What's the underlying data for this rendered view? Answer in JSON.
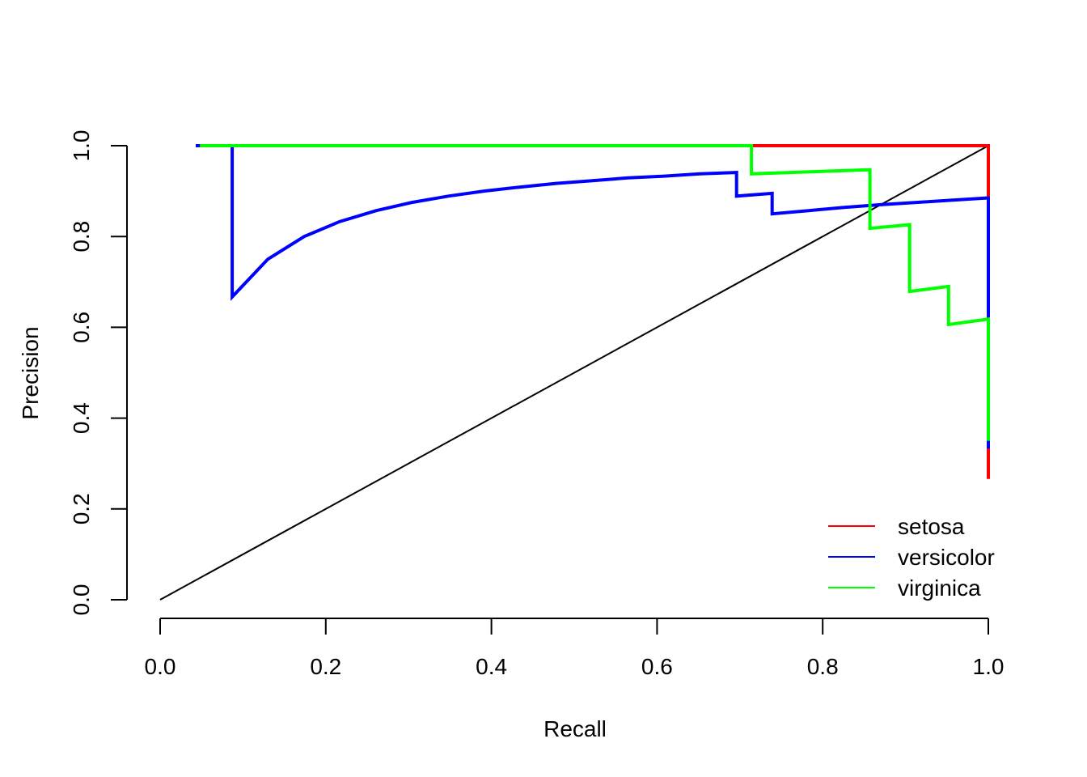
{
  "chart_data": {
    "type": "line",
    "title": "",
    "xlabel": "Recall",
    "ylabel": "Precision",
    "xlim": [
      0,
      1
    ],
    "ylim": [
      0,
      1
    ],
    "grid": false,
    "legend_position": "bottom-right",
    "x_ticks": [
      "0.0",
      "0.2",
      "0.4",
      "0.6",
      "0.8",
      "1.0"
    ],
    "y_ticks": [
      "0.0",
      "0.2",
      "0.4",
      "0.6",
      "0.8",
      "1.0"
    ],
    "series": [
      {
        "name": "setosa",
        "color": "#ff0000",
        "points": [
          [
            0.045,
            1.0
          ],
          [
            1.0,
            1.0
          ],
          [
            1.0,
            0.266
          ]
        ]
      },
      {
        "name": "versicolor",
        "color": "#0000ff",
        "points": [
          [
            0.043,
            1.0
          ],
          [
            0.087,
            1.0
          ],
          [
            0.087,
            0.667
          ],
          [
            0.13,
            0.75
          ],
          [
            0.174,
            0.8
          ],
          [
            0.217,
            0.833
          ],
          [
            0.261,
            0.857
          ],
          [
            0.304,
            0.875
          ],
          [
            0.348,
            0.889
          ],
          [
            0.391,
            0.9
          ],
          [
            0.435,
            0.909
          ],
          [
            0.478,
            0.917
          ],
          [
            0.522,
            0.923
          ],
          [
            0.565,
            0.929
          ],
          [
            0.609,
            0.933
          ],
          [
            0.652,
            0.938
          ],
          [
            0.696,
            0.941
          ],
          [
            0.696,
            0.889
          ],
          [
            0.739,
            0.895
          ],
          [
            0.739,
            0.85
          ],
          [
            0.783,
            0.857
          ],
          [
            0.826,
            0.864
          ],
          [
            0.87,
            0.87
          ],
          [
            0.913,
            0.875
          ],
          [
            0.957,
            0.88
          ],
          [
            1.0,
            0.885
          ],
          [
            1.0,
            0.333
          ]
        ]
      },
      {
        "name": "virginica",
        "color": "#00ff00",
        "points": [
          [
            0.048,
            1.0
          ],
          [
            0.714,
            1.0
          ],
          [
            0.714,
            0.938
          ],
          [
            0.857,
            0.947
          ],
          [
            0.857,
            0.818
          ],
          [
            0.905,
            0.826
          ],
          [
            0.905,
            0.679
          ],
          [
            0.952,
            0.69
          ],
          [
            0.952,
            0.606
          ],
          [
            1.0,
            0.618
          ],
          [
            1.0,
            0.35
          ]
        ]
      },
      {
        "name": "baseline",
        "color": "#000000",
        "points": [
          [
            0,
            0
          ],
          [
            1,
            1
          ]
        ]
      }
    ]
  },
  "legend": {
    "items": [
      {
        "label": "setosa",
        "color": "#ff0000"
      },
      {
        "label": "versicolor",
        "color": "#0000ff"
      },
      {
        "label": "virginica",
        "color": "#00ff00"
      }
    ]
  },
  "axes": {
    "x_title": "Recall",
    "y_title": "Precision"
  }
}
